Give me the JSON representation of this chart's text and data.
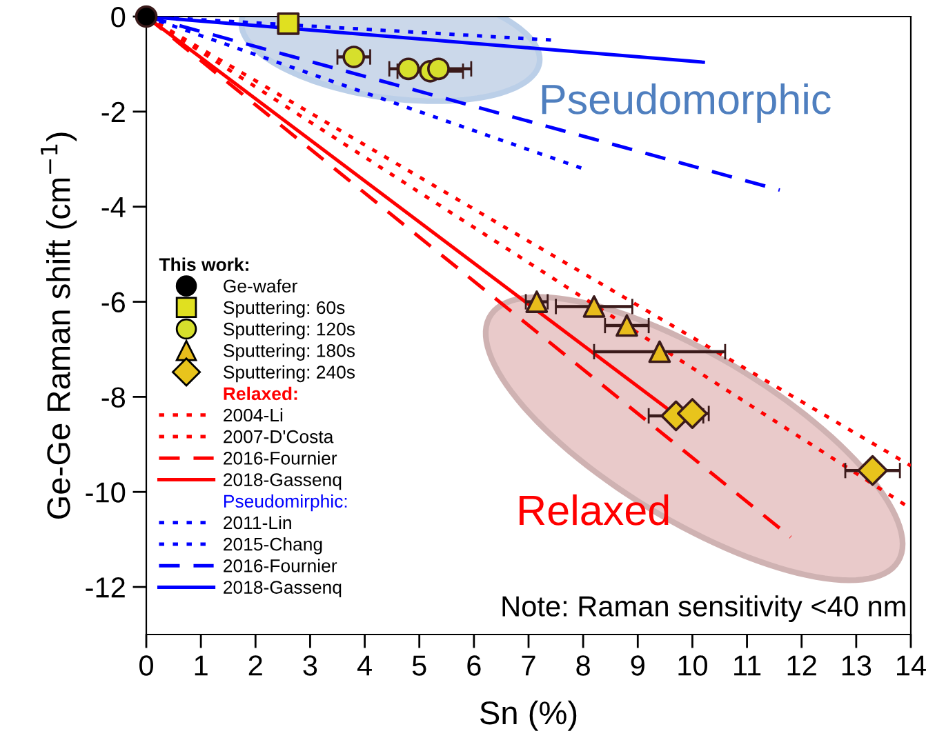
{
  "chart_data": {
    "type": "scatter",
    "xlabel": "Sn (%)",
    "ylabel": "Ge-Ge Raman shift (cm$^{−1}$)",
    "xlim": [
      0,
      14
    ],
    "ylim": [
      -13,
      0
    ],
    "xticks": [
      0,
      1,
      2,
      3,
      4,
      5,
      6,
      7,
      8,
      9,
      10,
      11,
      12,
      13,
      14
    ],
    "yticks": [
      0,
      -2,
      -4,
      -6,
      -8,
      -10,
      -12
    ],
    "grid": false,
    "legend": "left",
    "legend_title": "This work:",
    "annotations": [
      "Relaxed:",
      "Pseudomirphic:",
      "Pseudomorphic",
      "Relaxed",
      "Note: Raman sensitivity <40 nm"
    ],
    "series": [
      {
        "name": "Ge-wafer",
        "marker": "circle",
        "color": "#000000",
        "x": [
          0
        ],
        "values": [
          0
        ]
      },
      {
        "name": "Sputtering: 60s",
        "marker": "square",
        "color": "#e0e020",
        "x": [
          2.6
        ],
        "values": [
          -0.15
        ]
      },
      {
        "name": "Sputtering: 120s",
        "marker": "circle",
        "color": "#d6df2c",
        "x": [
          3.8,
          4.8,
          5.2,
          5.35
        ],
        "values": [
          -0.85,
          -1.1,
          -1.15,
          -1.1
        ],
        "xerrors": [
          0.3,
          0.35,
          0.6,
          0.6
        ]
      },
      {
        "name": "Sputtering: 180s",
        "marker": "triangle",
        "color": "#e8bc1c",
        "x": [
          7.15,
          8.2,
          8.8,
          9.4
        ],
        "values": [
          -6.0,
          -6.1,
          -6.5,
          -7.05
        ],
        "xerrors": [
          0.2,
          0.7,
          0.4,
          1.2
        ]
      },
      {
        "name": "Sputtering: 240s",
        "marker": "diamond",
        "color": "#e8c41c",
        "x": [
          9.7,
          10.0,
          13.3
        ],
        "values": [
          -8.4,
          -8.35,
          -9.55
        ],
        "xerrors": [
          0.5,
          0.3,
          0.5
        ]
      },
      {
        "name": "2004-Li",
        "type": "line",
        "line_style": "dotted",
        "color": "#ff0000",
        "x": [
          0,
          14
        ],
        "values": [
          0,
          -9.45
        ]
      },
      {
        "name": "2007-D'Costa",
        "type": "line",
        "line_style": "dotted",
        "color": "#ff0000",
        "x": [
          0,
          14
        ],
        "values": [
          0,
          -10.35
        ]
      },
      {
        "name": "2016-Fournier",
        "type": "line",
        "line_style": "dashed",
        "color": "#ff0000",
        "x": [
          0,
          11.8
        ],
        "values": [
          0,
          -10.95
        ]
      },
      {
        "name": "2018-Gassenq",
        "type": "line",
        "line_style": "solid",
        "color": "#ff0000",
        "x": [
          0,
          9.6
        ],
        "values": [
          0,
          -8.3
        ]
      },
      {
        "name": "2011-Lin",
        "type": "line",
        "line_style": "dotted",
        "color": "#0000ff",
        "x": [
          0,
          7.5
        ],
        "values": [
          0,
          -0.5
        ]
      },
      {
        "name": "2015-Chang",
        "type": "line",
        "line_style": "dotted",
        "color": "#0000ff",
        "x": [
          0,
          8.0
        ],
        "values": [
          0,
          -3.2
        ]
      },
      {
        "name": "2016-Fournier",
        "type": "line",
        "line_style": "dashed",
        "color": "#0000ff",
        "x": [
          0,
          11.6
        ],
        "values": [
          0,
          -3.65
        ]
      },
      {
        "name": "2018-Gassenq",
        "type": "line",
        "line_style": "solid",
        "color": "#0000ff",
        "x": [
          0,
          10.2
        ],
        "values": [
          0,
          -0.96
        ]
      }
    ]
  }
}
